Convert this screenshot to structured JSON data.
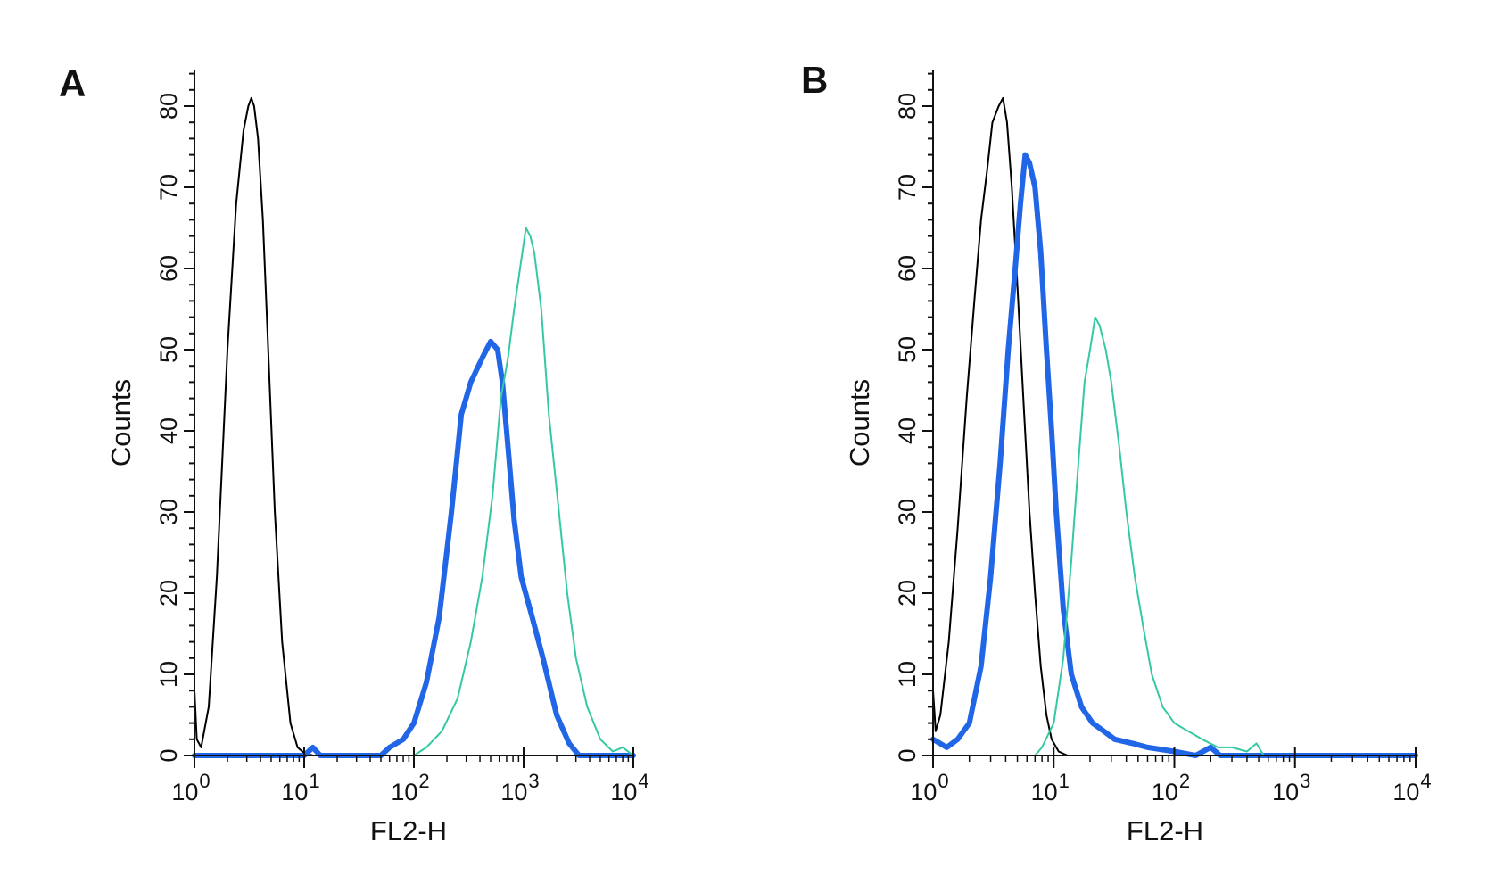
{
  "chart_data": [
    {
      "type": "histogram",
      "panel": "A",
      "xlabel": "FL2-H",
      "ylabel": "Counts",
      "x_scale": "log",
      "xlim": [
        1,
        10000
      ],
      "x_ticks": [
        {
          "base": "10",
          "exp": "0",
          "value": 1
        },
        {
          "base": "10",
          "exp": "1",
          "value": 10
        },
        {
          "base": "10",
          "exp": "2",
          "value": 100
        },
        {
          "base": "10",
          "exp": "3",
          "value": 1000
        },
        {
          "base": "10",
          "exp": "4",
          "value": 10000
        }
      ],
      "ylim": [
        0,
        85
      ],
      "y_ticks": [
        "0",
        "10",
        "20",
        "30",
        "40",
        "50",
        "60",
        "70",
        "80"
      ],
      "grid": false,
      "series": [
        {
          "color": "#000000",
          "width": 2,
          "points": [
            [
              1.0,
              8
            ],
            [
              1.05,
              2
            ],
            [
              1.15,
              1
            ],
            [
              1.35,
              6
            ],
            [
              1.6,
              22
            ],
            [
              2.0,
              50
            ],
            [
              2.4,
              68
            ],
            [
              2.8,
              77
            ],
            [
              3.1,
              80
            ],
            [
              3.3,
              81
            ],
            [
              3.5,
              80
            ],
            [
              3.8,
              76
            ],
            [
              4.2,
              66
            ],
            [
              4.7,
              50
            ],
            [
              5.4,
              30
            ],
            [
              6.3,
              14
            ],
            [
              7.5,
              4
            ],
            [
              8.7,
              1
            ],
            [
              10,
              0.3
            ],
            [
              12,
              0
            ],
            [
              10000,
              0
            ]
          ]
        },
        {
          "color": "#2166e6",
          "width": 6,
          "points": [
            [
              1,
              0
            ],
            [
              10,
              0
            ],
            [
              12,
              1
            ],
            [
              14,
              0
            ],
            [
              50,
              0
            ],
            [
              60,
              1
            ],
            [
              80,
              2
            ],
            [
              100,
              4
            ],
            [
              130,
              9
            ],
            [
              170,
              17
            ],
            [
              220,
              30
            ],
            [
              270,
              42
            ],
            [
              330,
              46
            ],
            [
              420,
              49
            ],
            [
              500,
              51
            ],
            [
              580,
              50
            ],
            [
              640,
              46
            ],
            [
              720,
              38
            ],
            [
              820,
              29
            ],
            [
              950,
              22
            ],
            [
              1200,
              17
            ],
            [
              1500,
              12
            ],
            [
              2000,
              5
            ],
            [
              2600,
              1.5
            ],
            [
              3200,
              0
            ],
            [
              10000,
              0
            ]
          ]
        },
        {
          "color": "#34c9a2",
          "width": 2,
          "points": [
            [
              1,
              0
            ],
            [
              10,
              0
            ],
            [
              100,
              0
            ],
            [
              130,
              1
            ],
            [
              180,
              3
            ],
            [
              250,
              7
            ],
            [
              330,
              14
            ],
            [
              420,
              22
            ],
            [
              520,
              32
            ],
            [
              620,
              44
            ],
            [
              720,
              49
            ],
            [
              820,
              55
            ],
            [
              950,
              61
            ],
            [
              1050,
              65
            ],
            [
              1150,
              64
            ],
            [
              1250,
              62
            ],
            [
              1450,
              55
            ],
            [
              1700,
              42
            ],
            [
              2100,
              30
            ],
            [
              2500,
              20
            ],
            [
              3000,
              12
            ],
            [
              3800,
              6
            ],
            [
              5000,
              2
            ],
            [
              6500,
              0.5
            ],
            [
              8000,
              1
            ],
            [
              10000,
              0
            ]
          ]
        }
      ]
    },
    {
      "type": "histogram",
      "panel": "B",
      "xlabel": "FL2-H",
      "ylabel": "Counts",
      "x_scale": "log",
      "xlim": [
        1,
        10000
      ],
      "x_ticks": [
        {
          "base": "10",
          "exp": "0",
          "value": 1
        },
        {
          "base": "10",
          "exp": "1",
          "value": 10
        },
        {
          "base": "10",
          "exp": "2",
          "value": 100
        },
        {
          "base": "10",
          "exp": "3",
          "value": 1000
        },
        {
          "base": "10",
          "exp": "4",
          "value": 10000
        }
      ],
      "ylim": [
        0,
        85
      ],
      "y_ticks": [
        "0",
        "10",
        "20",
        "30",
        "40",
        "50",
        "60",
        "70",
        "80"
      ],
      "grid": false,
      "series": [
        {
          "color": "#000000",
          "width": 2,
          "points": [
            [
              1.0,
              8
            ],
            [
              1.05,
              3
            ],
            [
              1.15,
              5
            ],
            [
              1.35,
              14
            ],
            [
              1.6,
              28
            ],
            [
              1.9,
              44
            ],
            [
              2.2,
              56
            ],
            [
              2.5,
              66
            ],
            [
              2.8,
              72
            ],
            [
              3.1,
              78
            ],
            [
              3.5,
              80
            ],
            [
              3.8,
              81
            ],
            [
              4.1,
              78
            ],
            [
              4.5,
              70
            ],
            [
              5.0,
              58
            ],
            [
              5.6,
              44
            ],
            [
              6.3,
              30
            ],
            [
              7.0,
              20
            ],
            [
              7.8,
              11
            ],
            [
              8.7,
              5
            ],
            [
              9.6,
              2
            ],
            [
              11,
              0.5
            ],
            [
              13,
              0
            ],
            [
              10000,
              0
            ]
          ]
        },
        {
          "color": "#2166e6",
          "width": 6,
          "points": [
            [
              1,
              2
            ],
            [
              1.3,
              1
            ],
            [
              1.6,
              2
            ],
            [
              2.0,
              4
            ],
            [
              2.5,
              11
            ],
            [
              3.0,
              22
            ],
            [
              3.6,
              36
            ],
            [
              4.2,
              50
            ],
            [
              4.8,
              60
            ],
            [
              5.3,
              68
            ],
            [
              5.8,
              74
            ],
            [
              6.3,
              73
            ],
            [
              7.0,
              70
            ],
            [
              7.8,
              62
            ],
            [
              8.7,
              50
            ],
            [
              9.6,
              40
            ],
            [
              10.5,
              30
            ],
            [
              12,
              18
            ],
            [
              14,
              10
            ],
            [
              17,
              6
            ],
            [
              21,
              4
            ],
            [
              26,
              3
            ],
            [
              32,
              2
            ],
            [
              45,
              1.5
            ],
            [
              60,
              1
            ],
            [
              100,
              0.5
            ],
            [
              150,
              0
            ],
            [
              200,
              1
            ],
            [
              240,
              0
            ],
            [
              10000,
              0
            ]
          ]
        },
        {
          "color": "#34c9a2",
          "width": 2,
          "points": [
            [
              1,
              0
            ],
            [
              7,
              0
            ],
            [
              8,
              1
            ],
            [
              10,
              4
            ],
            [
              12,
              12
            ],
            [
              14,
              24
            ],
            [
              16,
              36
            ],
            [
              18,
              46
            ],
            [
              20,
              50
            ],
            [
              22,
              54
            ],
            [
              24,
              53
            ],
            [
              27,
              50
            ],
            [
              30,
              46
            ],
            [
              35,
              38
            ],
            [
              40,
              30
            ],
            [
              47,
              22
            ],
            [
              55,
              16
            ],
            [
              65,
              10
            ],
            [
              80,
              6
            ],
            [
              100,
              4
            ],
            [
              130,
              3
            ],
            [
              170,
              2
            ],
            [
              230,
              1
            ],
            [
              300,
              1
            ],
            [
              400,
              0.5
            ],
            [
              480,
              1.5
            ],
            [
              550,
              0
            ],
            [
              1000,
              0
            ],
            [
              10000,
              0
            ]
          ]
        }
      ]
    }
  ]
}
